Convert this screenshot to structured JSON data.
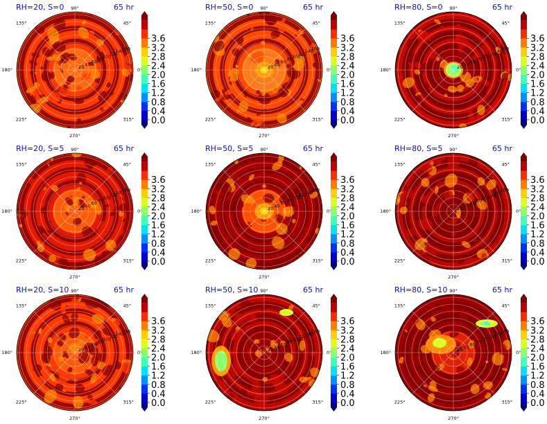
{
  "figure": {
    "background": "#ffffff"
  },
  "chart_data": {
    "type": "polar-contour-grid",
    "rows": 3,
    "cols": 3,
    "panels": [
      {
        "title": "RH=20, S=0",
        "time": "65 hr",
        "base_color": "#ff3a00",
        "inner_color": "#ff6a10",
        "ring_color": "#880000",
        "patch": "none"
      },
      {
        "title": "RH=50, S=0",
        "time": "65 hr",
        "base_color": "#ff4a00",
        "inner_color": "#ff7a18",
        "ring_color": "#8a0000",
        "patch": "center"
      },
      {
        "title": "RH=80, S=0",
        "time": "65 hr",
        "base_color": "#840000",
        "inner_color": "#9a0000",
        "ring_color": "#d10a00",
        "patch": "center-green"
      },
      {
        "title": "RH=20, S=5",
        "time": "65 hr",
        "base_color": "#e31a00",
        "inner_color": "#ff5a08",
        "ring_color": "#8a0000",
        "patch": "none"
      },
      {
        "title": "RH=50, S=5",
        "time": "65 hr",
        "base_color": "#a80000",
        "inner_color": "#ff5000",
        "ring_color": "#840000",
        "patch": "center"
      },
      {
        "title": "RH=80, S=5",
        "time": "65 hr",
        "base_color": "#840000",
        "inner_color": "#8c0000",
        "ring_color": "#c00a00",
        "patch": "none"
      },
      {
        "title": "RH=20, S=10",
        "time": "65 hr",
        "base_color": "#ff3a00",
        "inner_color": "#ff5a08",
        "ring_color": "#8a0000",
        "patch": "none"
      },
      {
        "title": "RH=50, S=10",
        "time": "65 hr",
        "base_color": "#8a0000",
        "inner_color": "#9a0000",
        "ring_color": "#c80a00",
        "patch": "west-green"
      },
      {
        "title": "RH=80, S=10",
        "time": "65 hr",
        "base_color": "#840000",
        "inner_color": "#e02000",
        "ring_color": "#a00000",
        "patch": "ne-green"
      }
    ],
    "angle_labels": [
      "0°",
      "45°",
      "90°",
      "135°",
      "180°",
      "225°",
      "270°",
      "315°"
    ],
    "radial_labels": [
      "20",
      "40",
      "60",
      "80",
      "100",
      "120",
      "140",
      "160"
    ],
    "colorbar": {
      "ticks": [
        "0.0",
        "0.4",
        "0.8",
        "1.2",
        "1.6",
        "2.0",
        "2.4",
        "2.8",
        "3.2",
        "3.6"
      ],
      "colormap": [
        "#00007f",
        "#0000d0",
        "#0030ff",
        "#0090ff",
        "#00e0ff",
        "#3effb8",
        "#8cff6c",
        "#d8ff1e",
        "#ffd000",
        "#ff7c00",
        "#ff2a00",
        "#c00000",
        "#7f0000"
      ],
      "extend": "both"
    }
  }
}
